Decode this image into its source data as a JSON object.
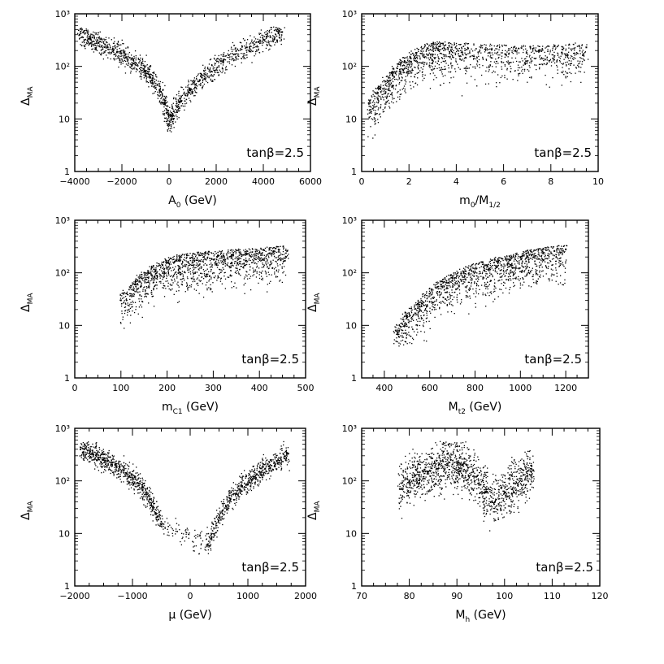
{
  "figure": {
    "annotation": "tanβ=2.5"
  },
  "chart_data": [
    {
      "type": "scatter",
      "xlabel": "A0 (GeV)",
      "xlabel_main": "A",
      "xlabel_sub": "0",
      "xlabel_unit": " (GeV)",
      "ylabel_main": "Δ",
      "ylabel_sub": "MA",
      "xlim": [
        -4000,
        6000
      ],
      "ylim": [
        1,
        1000
      ],
      "yscale": "log",
      "xticks": [
        -4000,
        -2000,
        0,
        2000,
        4000,
        6000
      ],
      "xticklabels": [
        "−4000",
        "−2000",
        "0",
        "2000",
        "4000",
        "6000"
      ],
      "yticklabels": [
        "1",
        "10",
        "10²",
        "10³"
      ],
      "annotation": "tanβ=2.5",
      "series": [
        {
          "x": [
            -3800,
            -3400,
            -3000,
            -2600,
            -2200,
            -1800,
            -1400,
            -1000,
            -700,
            -400,
            -200,
            0,
            200,
            500,
            900,
            1300,
            1800,
            2300,
            2800,
            3300,
            3800,
            4300,
            4800
          ],
          "y": [
            400,
            340,
            280,
            230,
            190,
            150,
            115,
            80,
            55,
            35,
            20,
            8,
            14,
            22,
            35,
            55,
            80,
            120,
            170,
            230,
            290,
            360,
            450
          ]
        }
      ]
    },
    {
      "type": "scatter",
      "xlabel_main": "m",
      "xlabel_sub": "0",
      "xlabel_unit": "/M",
      "xlabel_sub2": "1/2",
      "ylabel_main": "Δ",
      "ylabel_sub": "MA",
      "xlim": [
        0,
        10
      ],
      "ylim": [
        1,
        1000
      ],
      "yscale": "log",
      "xticks": [
        0,
        2,
        4,
        6,
        8,
        10
      ],
      "xticklabels": [
        "0",
        "2",
        "4",
        "6",
        "8",
        "10"
      ],
      "yticklabels": [
        "1",
        "10",
        "10²",
        "10³"
      ],
      "annotation": "tanβ=2.5",
      "series": [
        {
          "x": [
            0.3,
            0.8,
            1.3,
            1.8,
            2.3,
            2.8,
            3.3,
            3.8,
            4.5,
            5.5,
            6.5,
            7.5,
            8.5,
            9.5
          ],
          "y": [
            20,
            40,
            70,
            120,
            180,
            220,
            240,
            230,
            220,
            210,
            200,
            200,
            210,
            230
          ]
        }
      ]
    },
    {
      "type": "scatter",
      "xlabel_main": "m",
      "xlabel_sub": "C1",
      "xlabel_unit": " (GeV)",
      "ylabel_main": "Δ",
      "ylabel_sub": "MA",
      "xlim": [
        0,
        500
      ],
      "ylim": [
        1,
        1000
      ],
      "yscale": "log",
      "xticks": [
        0,
        100,
        200,
        300,
        400,
        500
      ],
      "xticklabels": [
        "0",
        "100",
        "200",
        "300",
        "400",
        "500"
      ],
      "yticklabels": [
        "1",
        "10",
        "10²",
        "10³"
      ],
      "annotation": "tanβ=2.5",
      "series": [
        {
          "x": [
            100,
            130,
            160,
            190,
            220,
            250,
            280,
            310,
            340,
            370,
            400,
            430,
            460
          ],
          "y": [
            30,
            60,
            100,
            140,
            170,
            190,
            200,
            210,
            220,
            230,
            240,
            250,
            260
          ]
        }
      ]
    },
    {
      "type": "scatter",
      "xlabel_main": "M",
      "xlabel_sub": "t2",
      "xlabel_unit": " (GeV)",
      "ylabel_main": "Δ",
      "ylabel_sub": "MA",
      "xlim": [
        300,
        1300
      ],
      "ylim": [
        1,
        1000
      ],
      "yscale": "log",
      "xticks": [
        400,
        600,
        800,
        1000,
        1200
      ],
      "xticklabels": [
        "400",
        "600",
        "800",
        "1000",
        "1200"
      ],
      "yticklabels": [
        "1",
        "10",
        "10²",
        "10³"
      ],
      "annotation": "tanβ=2.5",
      "series": [
        {
          "x": [
            450,
            500,
            550,
            600,
            650,
            700,
            750,
            800,
            850,
            900,
            950,
            1000,
            1050,
            1100,
            1150,
            1200
          ],
          "y": [
            8,
            15,
            25,
            40,
            60,
            80,
            100,
            120,
            140,
            160,
            180,
            200,
            220,
            240,
            260,
            280
          ]
        }
      ]
    },
    {
      "type": "scatter",
      "xlabel_main": "μ",
      "xlabel_sub": "",
      "xlabel_unit": " (GeV)",
      "ylabel_main": "Δ",
      "ylabel_sub": "MA",
      "xlim": [
        -2000,
        2000
      ],
      "ylim": [
        1,
        1000
      ],
      "yscale": "log",
      "xticks": [
        -2000,
        -1000,
        0,
        1000,
        2000
      ],
      "xticklabels": [
        "−2000",
        "−1000",
        "0",
        "1000",
        "2000"
      ],
      "yticklabels": [
        "1",
        "10",
        "10²",
        "10³"
      ],
      "annotation": "tanβ=2.5",
      "series": [
        {
          "x": [
            -1900,
            -1700,
            -1500,
            -1300,
            -1100,
            -900,
            -700,
            -500,
            300,
            500,
            700,
            900,
            1100,
            1300,
            1500,
            1700
          ],
          "y": [
            400,
            330,
            260,
            200,
            140,
            90,
            45,
            15,
            6,
            20,
            45,
            80,
            120,
            170,
            240,
            330
          ]
        }
      ]
    },
    {
      "type": "scatter",
      "xlabel_main": "M",
      "xlabel_sub": "h",
      "xlabel_unit": " (GeV)",
      "ylabel_main": "Δ",
      "ylabel_sub": "MA",
      "xlim": [
        70,
        120
      ],
      "ylim": [
        1,
        1000
      ],
      "yscale": "log",
      "xticks": [
        70,
        80,
        90,
        100,
        110,
        120
      ],
      "xticklabels": [
        "70",
        "80",
        "90",
        "100",
        "110",
        "120"
      ],
      "yticklabels": [
        "1",
        "10",
        "10²",
        "10³"
      ],
      "annotation": "tanβ=2.5",
      "series": [
        {
          "x": [
            78,
            80,
            82,
            84,
            86,
            88,
            90,
            92,
            94,
            96,
            98,
            100,
            102,
            104,
            106
          ],
          "y": [
            70,
            100,
            130,
            150,
            170,
            200,
            220,
            200,
            120,
            60,
            40,
            60,
            90,
            130,
            160
          ]
        }
      ]
    }
  ]
}
